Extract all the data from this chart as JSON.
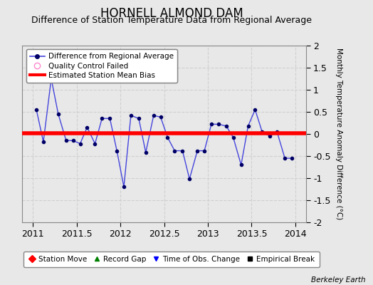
{
  "title": "HORNELL ALMOND DAM",
  "subtitle": "Difference of Station Temperature Data from Regional Average",
  "ylabel": "Monthly Temperature Anomaly Difference (°C)",
  "xlabel_ticks": [
    2011,
    2011.5,
    2012,
    2012.5,
    2013,
    2013.5,
    2014
  ],
  "ylim": [
    -2,
    2
  ],
  "xlim": [
    2010.88,
    2014.12
  ],
  "bias_value": 0.02,
  "watermark": "Berkeley Earth",
  "bg_color": "#e8e8e8",
  "plot_bg_color": "#e8e8e8",
  "line_color": "#4444dd",
  "marker_color": "#000066",
  "bias_color": "#ff0000",
  "grid_color": "#d0d0d0",
  "data_x": [
    2011.04,
    2011.12,
    2011.21,
    2011.29,
    2011.38,
    2011.46,
    2011.54,
    2011.62,
    2011.71,
    2011.79,
    2011.88,
    2011.96,
    2012.04,
    2012.12,
    2012.21,
    2012.29,
    2012.38,
    2012.46,
    2012.54,
    2012.62,
    2012.71,
    2012.79,
    2012.88,
    2012.96,
    2013.04,
    2013.12,
    2013.21,
    2013.29,
    2013.38,
    2013.46,
    2013.54,
    2013.62,
    2013.71,
    2013.79,
    2013.88,
    2013.96
  ],
  "data_y": [
    0.55,
    -0.18,
    1.25,
    0.45,
    -0.15,
    -0.15,
    -0.22,
    0.15,
    -0.22,
    0.35,
    0.35,
    -0.38,
    -1.2,
    0.42,
    0.35,
    -0.42,
    0.42,
    0.38,
    -0.08,
    -0.38,
    -0.38,
    -1.02,
    -0.38,
    -0.38,
    0.22,
    0.22,
    0.18,
    -0.08,
    -0.7,
    0.18,
    0.55,
    0.05,
    -0.05,
    0.05,
    -0.55,
    -0.55
  ],
  "tick_label_size": 9,
  "title_size": 12,
  "subtitle_size": 9,
  "ylabel_size": 7.5
}
